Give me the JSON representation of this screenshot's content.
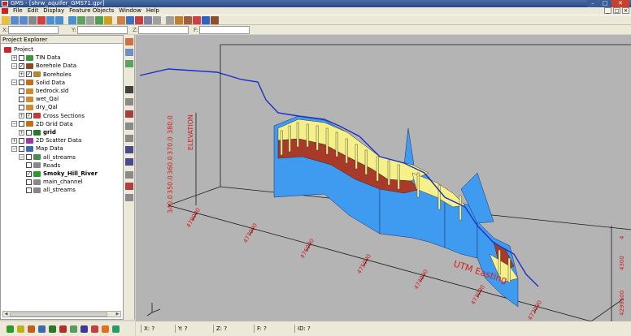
{
  "window": {
    "title": "GMS - [shrw_aquifer_GMS71.gpr]",
    "min_label": "–",
    "max_label": "□",
    "close_label": "✕"
  },
  "menu": {
    "items": [
      "File",
      "Edit",
      "Display",
      "Feature Objects",
      "Window",
      "Help"
    ]
  },
  "mdi": {
    "min_label": "_",
    "max_label": "□",
    "close_label": "✕"
  },
  "coords": [
    {
      "label": "X:",
      "value": ""
    },
    {
      "label": "Y:",
      "value": ""
    },
    {
      "label": "Z:",
      "value": ""
    },
    {
      "label": "F:",
      "value": ""
    }
  ],
  "explorer": {
    "title": "Project Explorer",
    "tree": [
      {
        "label": "Project",
        "expander": "",
        "checked": null,
        "icon": "project-icon",
        "icon_color": "#c62828",
        "indent": 0,
        "bold": false
      },
      {
        "label": "TIN Data",
        "expander": "+",
        "checked": false,
        "icon": "tin-icon",
        "icon_color": "#3a9a3a",
        "indent": 1,
        "bold": false
      },
      {
        "label": "Borehole Data",
        "expander": "−",
        "checked": true,
        "icon": "borehole-folder-icon",
        "icon_color": "#8a4a2a",
        "indent": 1,
        "bold": false
      },
      {
        "label": "Boreholes",
        "expander": "+",
        "checked": true,
        "icon": "borehole-icon",
        "icon_color": "#b08a2a",
        "indent": 2,
        "bold": false
      },
      {
        "label": "Solid Data",
        "expander": "−",
        "checked": false,
        "icon": "solid-folder-icon",
        "icon_color": "#c0701a",
        "indent": 1,
        "bold": false
      },
      {
        "label": "bedrock.sld",
        "expander": "",
        "checked": false,
        "icon": "solid-icon",
        "icon_color": "#d08a30",
        "indent": 2,
        "bold": false
      },
      {
        "label": "wet_Qal",
        "expander": "",
        "checked": false,
        "icon": "solid-icon",
        "icon_color": "#d08a30",
        "indent": 2,
        "bold": false
      },
      {
        "label": "dry_Qal",
        "expander": "",
        "checked": false,
        "icon": "solid-icon",
        "icon_color": "#d08a30",
        "indent": 2,
        "bold": false
      },
      {
        "label": "Cross Sections",
        "expander": "+",
        "checked": true,
        "icon": "cross-section-icon",
        "icon_color": "#c23a3a",
        "indent": 2,
        "bold": false
      },
      {
        "label": "2D Grid Data",
        "expander": "−",
        "checked": false,
        "icon": "grid-folder-icon",
        "icon_color": "#c0701a",
        "indent": 1,
        "bold": false
      },
      {
        "label": "grid",
        "expander": "+",
        "checked": false,
        "icon": "grid-icon",
        "icon_color": "#2a7a2a",
        "indent": 2,
        "bold": true
      },
      {
        "label": "2D Scatter Data",
        "expander": "+",
        "checked": false,
        "icon": "scatter-icon",
        "icon_color": "#9a3a9a",
        "indent": 1,
        "bold": false
      },
      {
        "label": "Map Data",
        "expander": "−",
        "checked": false,
        "icon": "map-folder-icon",
        "icon_color": "#3a6ab0",
        "indent": 1,
        "bold": false
      },
      {
        "label": "all_streams",
        "expander": "−",
        "checked": false,
        "icon": "coverage-icon",
        "icon_color": "#4a8a4a",
        "indent": 2,
        "bold": false
      },
      {
        "label": "Roads",
        "expander": "",
        "checked": false,
        "icon": "eye-icon",
        "icon_color": "#888888",
        "indent": 3,
        "bold": false
      },
      {
        "label": "Smoky_Hill_River",
        "expander": "",
        "checked": true,
        "icon": "eye-icon",
        "icon_color": "#2a9a2a",
        "indent": 3,
        "bold": true
      },
      {
        "label": "main_channel",
        "expander": "",
        "checked": false,
        "icon": "eye-icon",
        "icon_color": "#888888",
        "indent": 3,
        "bold": false
      },
      {
        "label": "all_streams",
        "expander": "",
        "checked": false,
        "icon": "eye-icon",
        "icon_color": "#888888",
        "indent": 3,
        "bold": false
      }
    ]
  },
  "viewport": {
    "vertical_axis_label": "ELEVATION",
    "vertical_ticks": [
      "380.0",
      "370.0",
      "360.0",
      "350.0",
      "340.0"
    ],
    "easting_label": "UTM Easting",
    "easting_ticks": [
      "478000",
      "477000",
      "476000",
      "475000",
      "474000",
      "473000",
      "472000"
    ],
    "right_ticks": [
      "4",
      "4300",
      "4299500"
    ],
    "colors": {
      "background": "#b4b4b4",
      "section_fill": "#3f9bef",
      "clay": "#a83a2a",
      "sand": "#f5f08a",
      "river": "#1a30c8",
      "axis_labels": "#d42020",
      "frame": "#1a1a1a"
    }
  },
  "status": {
    "x": "X: ?",
    "y": "Y: ?",
    "z": "Z: ?",
    "f": "F: ?",
    "id": "ID: ?"
  },
  "toolbar_colors": [
    "#e8c040",
    "#5a8ad0",
    "#5a8ad0",
    "#888888",
    "#d04040",
    "#4a90d0",
    "#4a90d0",
    "#4a90d0",
    "#60a060",
    "#a0a0a0",
    "#50a050",
    "#d0a020",
    "#d08040",
    "#4070c0",
    "#c04040",
    "#8080a0",
    "#a0a0a0",
    "#a0a0a0",
    "#c08030",
    "#a06040",
    "#d04040",
    "#3060c0",
    "#8a5030"
  ],
  "bottom_icon_colors": [
    "#2a9a2a",
    "#c0b020",
    "#c06020",
    "#3a6ab0",
    "#2a7a2a",
    "#b03030",
    "#5a9a5a",
    "#3a3a9a",
    "#c04040",
    "#e07020",
    "#2a9a6a"
  ]
}
